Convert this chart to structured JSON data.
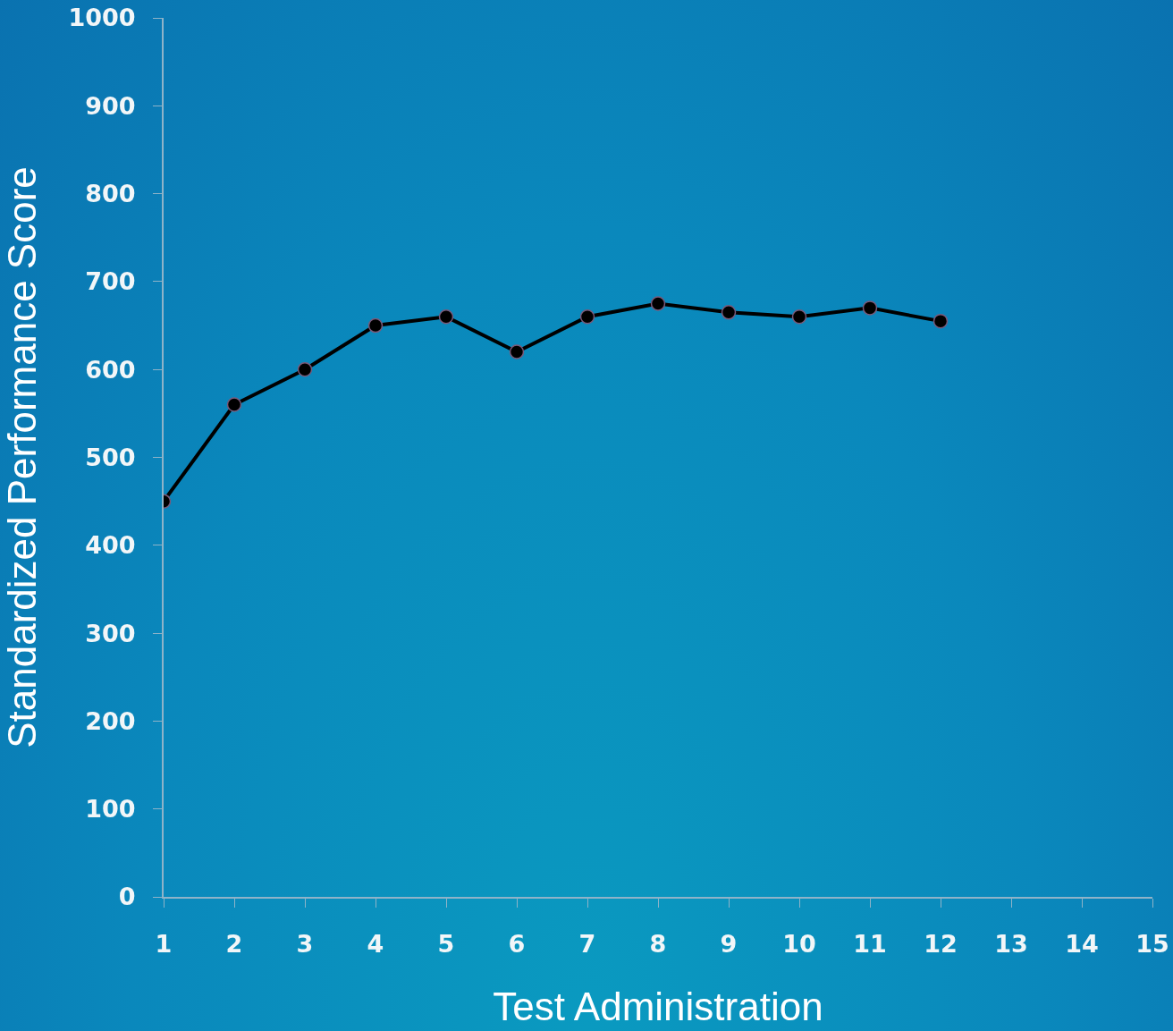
{
  "chart_data": {
    "type": "line",
    "xlabel": "Test Administration",
    "ylabel": "Standardized Performance Score",
    "x": [
      1,
      2,
      3,
      4,
      5,
      6,
      7,
      8,
      9,
      10,
      11,
      12
    ],
    "values": [
      450,
      560,
      600,
      650,
      660,
      620,
      660,
      675,
      665,
      660,
      670,
      655
    ],
    "color": "#000000",
    "marker": "circle",
    "line_style": "solid",
    "grid": false,
    "xlim": [
      1,
      15
    ],
    "xticks": [
      1,
      2,
      3,
      4,
      5,
      6,
      7,
      8,
      9,
      10,
      11,
      12,
      13,
      14,
      15
    ],
    "ylim": [
      0,
      1000
    ],
    "yticks": [
      0,
      100,
      200,
      300,
      400,
      500,
      600,
      700,
      800,
      900,
      1000
    ]
  }
}
